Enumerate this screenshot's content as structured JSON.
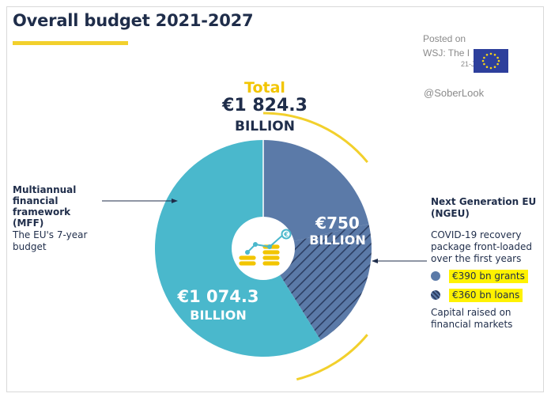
{
  "header": {
    "title": "Overall budget 2021-2027"
  },
  "watermark": {
    "posted_on": "Posted on",
    "source": "WSJ: The I",
    "date": "21-Jul-2020",
    "handle": "@SoberLook"
  },
  "chart_data": {
    "type": "pie",
    "title": "Overall budget 2021-2027",
    "total_label": "Total",
    "total_value": "€1 824.3",
    "total_unit": "BILLION",
    "total": 1824.3,
    "slices": [
      {
        "label": "€750",
        "unit": "BILLION",
        "value": 750,
        "color": "#5b7aa8",
        "sub": [
          {
            "value": 390,
            "pattern": "solid"
          },
          {
            "value": 360,
            "pattern": "hatched"
          }
        ]
      },
      {
        "label": "€1 074.3",
        "unit": "BILLION",
        "value": 1074.3,
        "color": "#4ab8cc"
      }
    ]
  },
  "annotations": {
    "mff_title": "Multiannual financial framework (MFF)",
    "mff_desc": "The EU's 7-year budget",
    "ngeu_title": "Next Generation EU (NGEU)",
    "ngeu_desc": "COVID-19 recovery package front-loaded over the first years",
    "capital": "Capital raised on financial markets"
  },
  "legend": [
    {
      "label": "€390 bn grants",
      "pattern": "solid",
      "color": "#5b7aa8"
    },
    {
      "label": "€360 bn loans",
      "pattern": "hatched",
      "color": "#2c3e62"
    }
  ],
  "colors": {
    "accent_yellow": "#f2d02c",
    "navy": "#1f2d4a",
    "ngeu_blue": "#5b7aa8",
    "mff_teal": "#4ab8cc",
    "highlight": "#fff200"
  },
  "icons": [
    "coins-growth-icon",
    "eu-flag-icon"
  ]
}
